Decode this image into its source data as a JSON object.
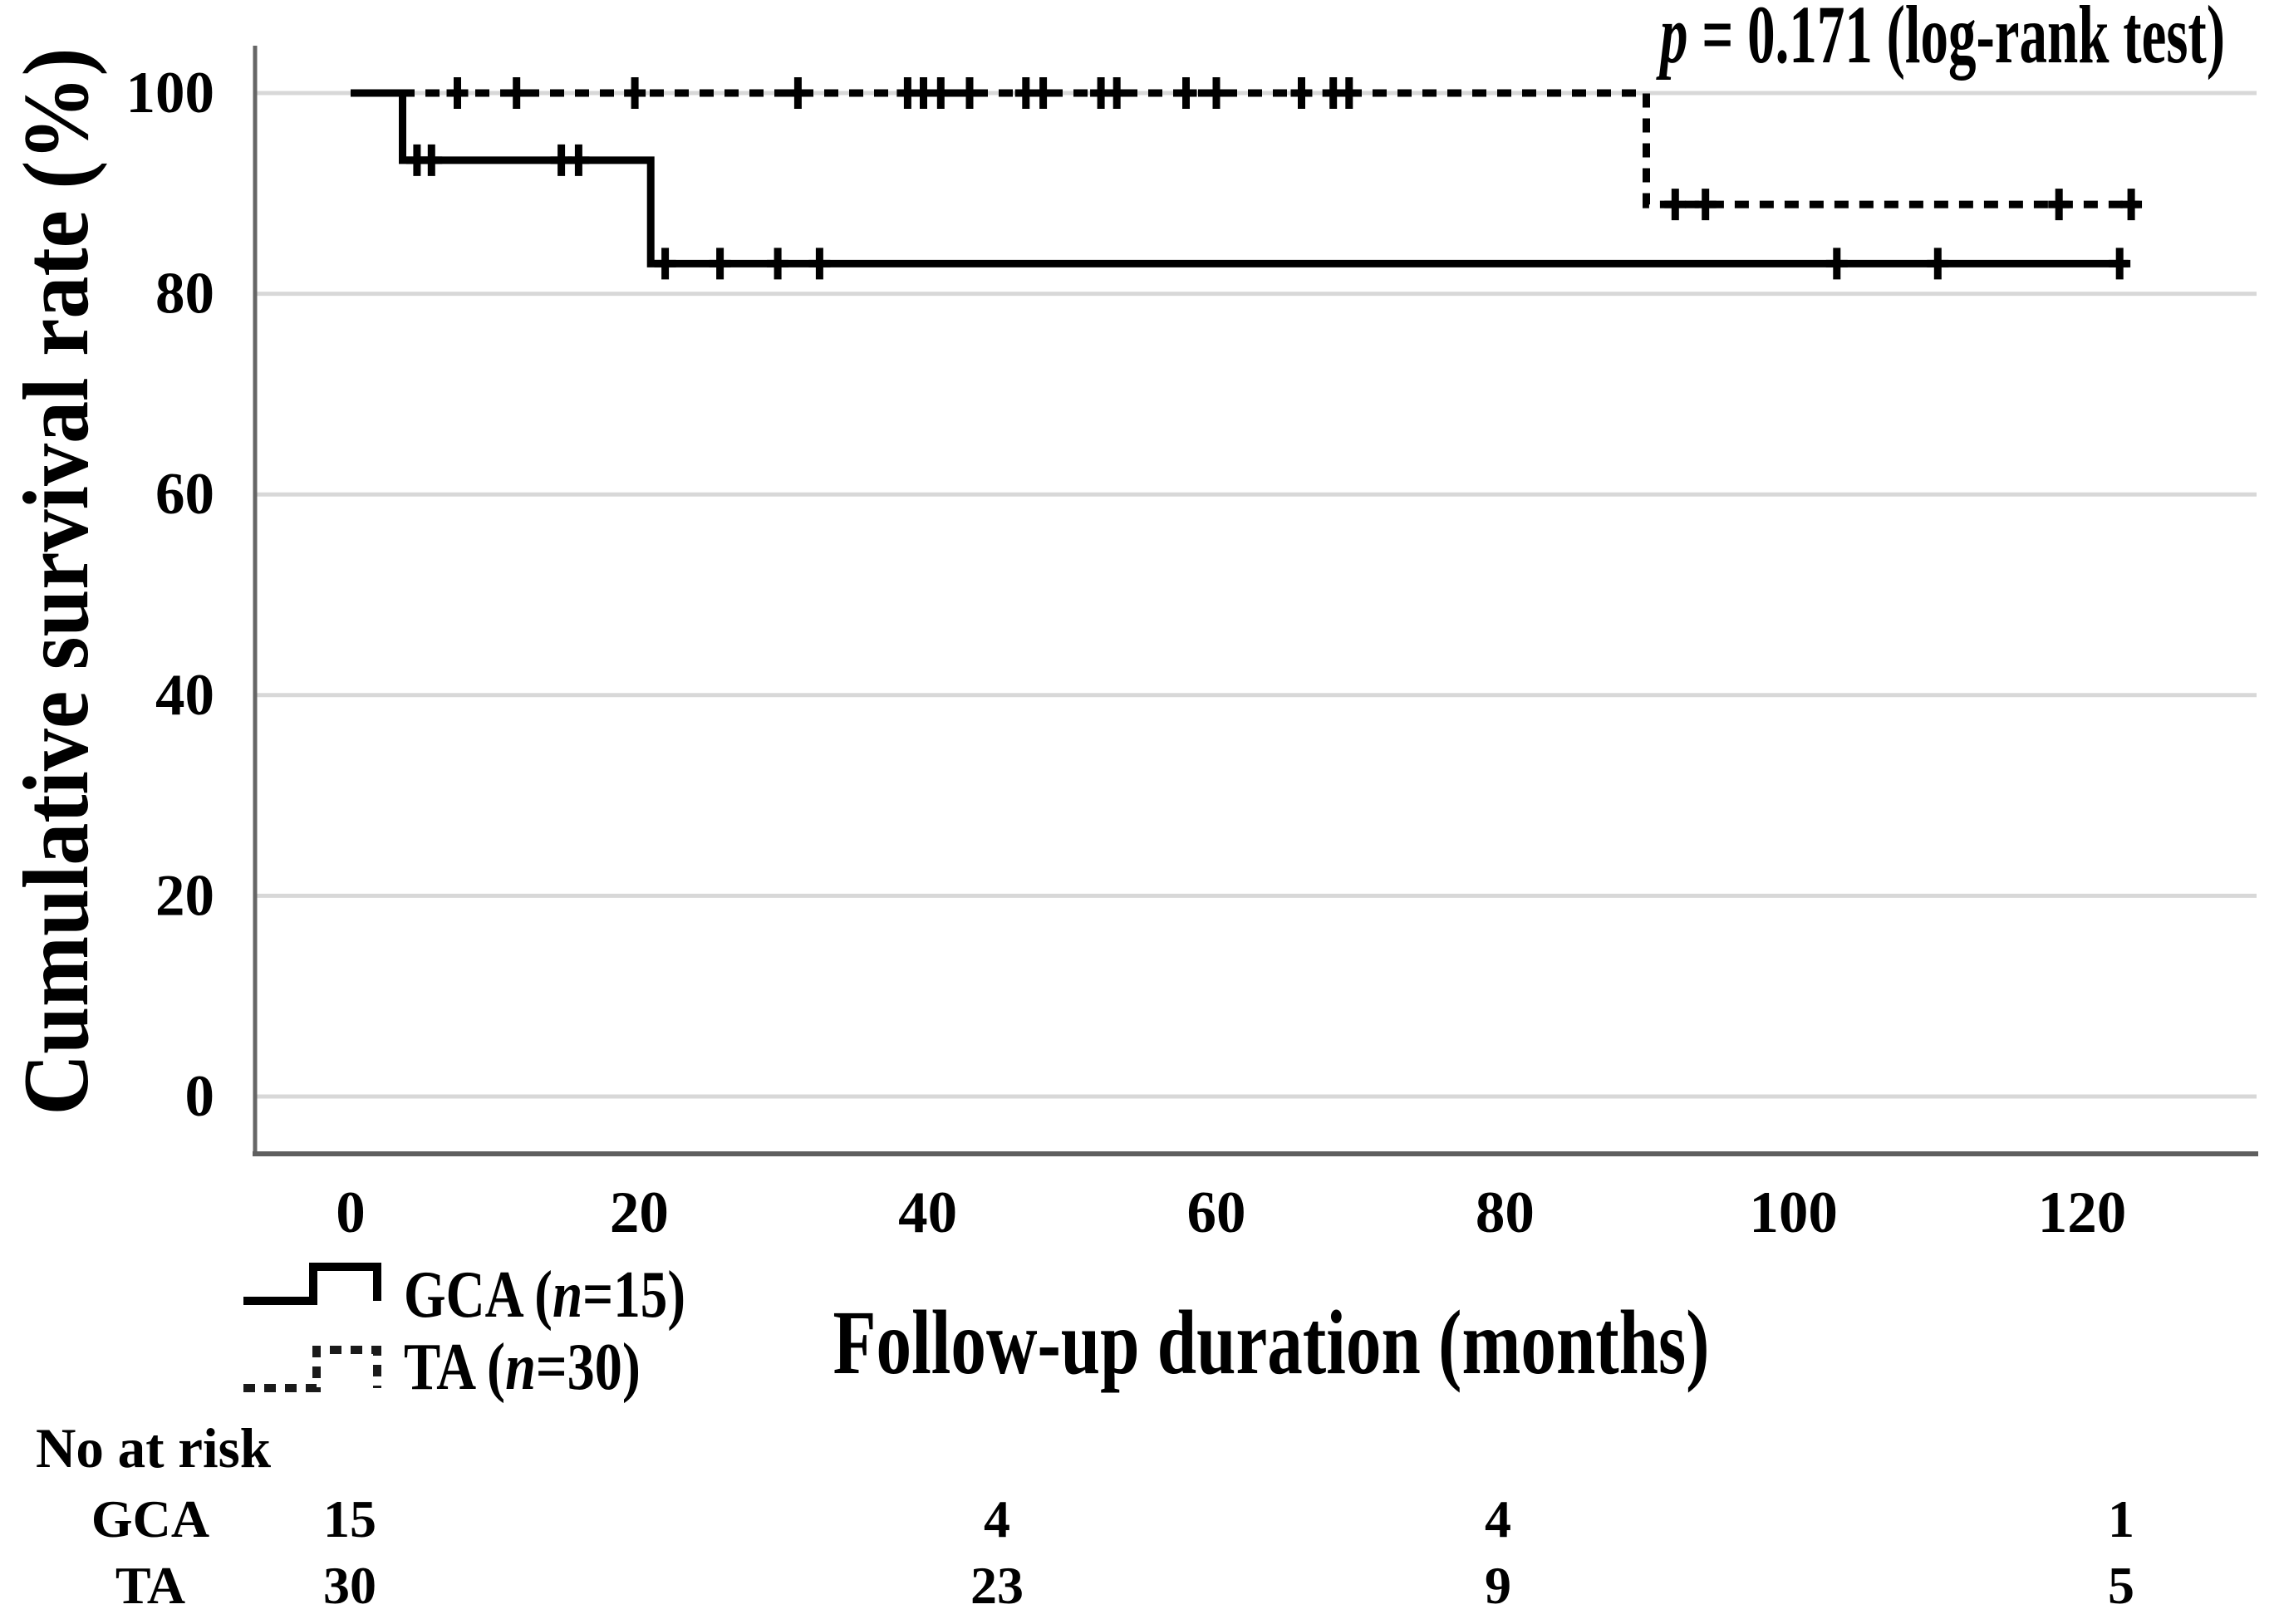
{
  "figure": {
    "p_value": {
      "italic_part": "p",
      "rest": " = 0.171 (log-rank test)"
    },
    "no_at_risk_label": "No at risk"
  },
  "chart_data": {
    "type": "line",
    "subtype": "kaplan-meier-step",
    "title": "",
    "xlabel": "Follow-up duration (months)",
    "ylabel": "Cumulative survival rate (%)",
    "xlim": [
      0,
      132
    ],
    "ylim": [
      0,
      100
    ],
    "xticks": [
      0,
      20,
      40,
      60,
      80,
      100,
      120
    ],
    "yticks": [
      100,
      80,
      60,
      40,
      20,
      0
    ],
    "grid": true,
    "legend_position": "below-left",
    "annotation": "p = 0.171 (log-rank test)",
    "colors": {
      "curve": "#000000",
      "grid": "#d8d8d8",
      "axis": "#666666"
    },
    "series": [
      {
        "name": "GCA",
        "n": 15,
        "label_prefix": "GCA (",
        "label_n": "n",
        "label_suffix": "=15)",
        "style": "solid",
        "steps": [
          [
            0,
            100
          ],
          [
            3.6,
            100
          ],
          [
            3.6,
            93.3
          ],
          [
            20.8,
            93.3
          ],
          [
            20.8,
            83.0
          ],
          [
            123.2,
            83.0
          ]
        ],
        "censors": [
          [
            4.6,
            93.3
          ],
          [
            5.6,
            93.3
          ],
          [
            14.6,
            93.3
          ],
          [
            15.8,
            93.3
          ],
          [
            21.8,
            83.0
          ],
          [
            25.6,
            83.0
          ],
          [
            29.6,
            83.0
          ],
          [
            32.5,
            83.0
          ],
          [
            103,
            83.0
          ],
          [
            110,
            83.0
          ],
          [
            122.6,
            83.0
          ]
        ]
      },
      {
        "name": "TA",
        "n": 30,
        "label_prefix": "TA (",
        "label_n": "n",
        "label_suffix": "=30)",
        "style": "dashed",
        "steps": [
          [
            0,
            100
          ],
          [
            89.8,
            100
          ],
          [
            89.8,
            88.9
          ],
          [
            124,
            88.9
          ]
        ],
        "censors": [
          [
            7.4,
            100
          ],
          [
            11.5,
            100
          ],
          [
            19.7,
            100
          ],
          [
            31,
            100
          ],
          [
            38.6,
            100
          ],
          [
            39.7,
            100
          ],
          [
            40.9,
            100
          ],
          [
            42.9,
            100
          ],
          [
            46.8,
            100
          ],
          [
            48,
            100
          ],
          [
            52,
            100
          ],
          [
            53.1,
            100
          ],
          [
            57.9,
            100
          ],
          [
            60,
            100
          ],
          [
            65.9,
            100
          ],
          [
            68.1,
            100
          ],
          [
            69.2,
            100
          ],
          [
            91.8,
            88.9
          ],
          [
            93.9,
            88.9
          ],
          [
            118.4,
            88.9
          ],
          [
            123.4,
            88.9
          ]
        ]
      }
    ],
    "risk_table": {
      "header": "No at risk",
      "time_points": [
        0,
        40,
        80,
        120
      ],
      "rows": [
        {
          "label": "GCA",
          "values": [
            "15",
            "4",
            "4",
            "1"
          ]
        },
        {
          "label": "TA",
          "values": [
            "30",
            "23",
            "9",
            "5"
          ]
        }
      ]
    }
  }
}
